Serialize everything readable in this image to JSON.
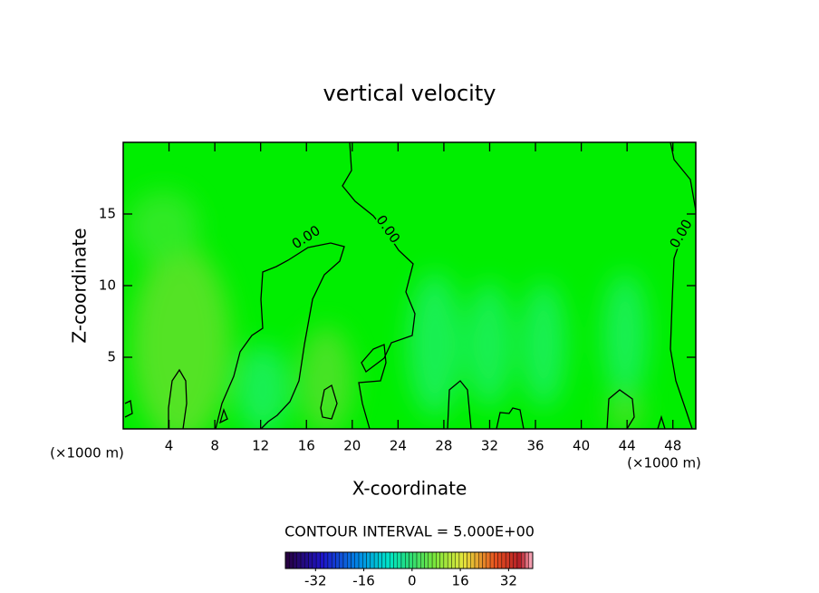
{
  "chart_data": {
    "type": "contour",
    "title": "vertical velocity",
    "xlabel": "X-coordinate",
    "ylabel": "Z-coordinate",
    "x_unit": "(×1000 m)",
    "y_unit": "(×1000 m)",
    "xlim": [
      0,
      50
    ],
    "xticks": [
      4,
      8,
      12,
      16,
      20,
      24,
      28,
      32,
      36,
      40,
      44,
      48
    ],
    "ylim": [
      0,
      20
    ],
    "yticks": [
      5,
      10,
      15
    ],
    "contour_levels": [
      {
        "value": 0,
        "label": "0.00"
      }
    ],
    "contour_interval": "CONTOUR INTERVAL = 5.000E+00",
    "clim": [
      -42,
      40
    ],
    "cticks": [
      -32,
      -16,
      0,
      16,
      32
    ]
  }
}
